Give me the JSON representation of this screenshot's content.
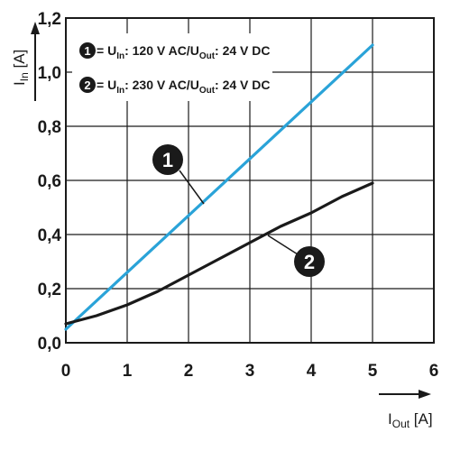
{
  "chart_data": {
    "type": "line",
    "xlabel": {
      "main": "I",
      "sub": "Out",
      "unit": " [A]"
    },
    "ylabel": {
      "main": "I",
      "sub": "In",
      "unit": " [A]"
    },
    "xlim": [
      0,
      6
    ],
    "ylim": [
      0,
      1.2
    ],
    "x_ticks": [
      "0",
      "1",
      "2",
      "3",
      "4",
      "5",
      "6"
    ],
    "y_ticks": [
      "0,0",
      "0,2",
      "0,4",
      "0,6",
      "0,8",
      "1,0",
      "1,2"
    ],
    "grid": true,
    "legend_position": "top-left",
    "series": [
      {
        "marker": "1",
        "legend": {
          "eq": " = U",
          "sub1": "In",
          "mid": ": 120 V AC/U",
          "sub2": "Out",
          "end": ": 24 V DC"
        },
        "color": "#2aa3d8",
        "x": [
          0,
          5
        ],
        "y": [
          0.05,
          1.1
        ]
      },
      {
        "marker": "2",
        "legend": {
          "eq": " = U",
          "sub1": "In",
          "mid": ": 230 V AC/U",
          "sub2": "Out",
          "end": ": 24 V DC"
        },
        "color": "#1a1a1a",
        "x": [
          0,
          0.5,
          1,
          1.5,
          2,
          2.5,
          3,
          3.5,
          4,
          4.5,
          5
        ],
        "y": [
          0.07,
          0.1,
          0.14,
          0.19,
          0.25,
          0.31,
          0.37,
          0.43,
          0.48,
          0.54,
          0.59
        ]
      }
    ]
  }
}
